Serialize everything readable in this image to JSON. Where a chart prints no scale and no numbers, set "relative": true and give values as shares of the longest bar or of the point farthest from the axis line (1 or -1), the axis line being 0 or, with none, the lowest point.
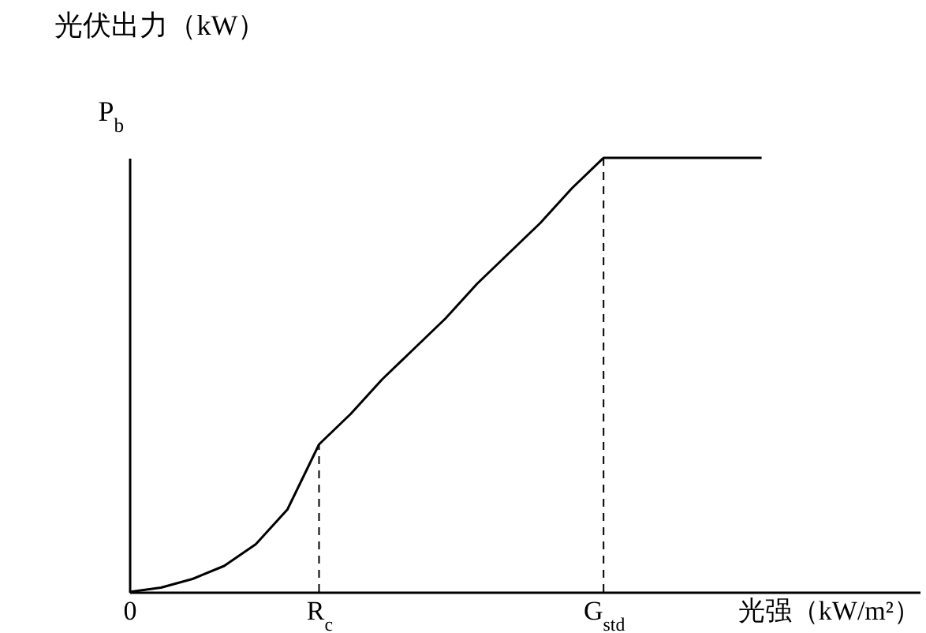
{
  "chart_data": {
    "type": "line",
    "relative": true,
    "title": "光伏出力（kW）",
    "ylabel": "P$_{b}$",
    "xlabel": "光强（kW/m²）",
    "categories": [
      "0",
      null,
      null,
      null,
      null,
      null,
      "R$_{c}$",
      null,
      null,
      null,
      null,
      null,
      null,
      null,
      null,
      "G$_{std}$",
      null,
      null,
      null,
      null,
      null,
      null,
      null,
      null,
      null,
      null
    ],
    "series": [
      {
        "color": "#000000",
        "values": [
          0,
          0.01,
          0.03,
          0.06,
          0.11,
          0.19,
          0.34,
          0.41,
          0.49,
          0.56,
          0.63,
          0.71,
          0.78,
          0.85,
          0.93,
          1,
          1,
          1,
          1,
          1,
          1,
          null,
          null,
          null,
          null,
          null
        ]
      }
    ],
    "ref_lines": [
      {
        "axis": "x",
        "value": "R$_{c}$",
        "line_style": "dashed"
      },
      {
        "axis": "x",
        "value": "G$_{std}$",
        "line_style": "dashed"
      }
    ],
    "marker": "none",
    "line_style": "solid"
  }
}
